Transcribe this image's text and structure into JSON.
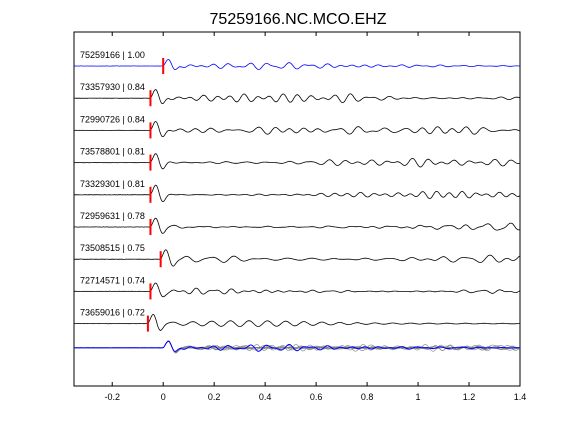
{
  "chart_data": {
    "type": "line",
    "title": "75259166.NC.MCO.EHZ",
    "xlabel": "",
    "ylabel": "",
    "xlim": [
      -0.35,
      1.4
    ],
    "xticks": [
      -0.2,
      0,
      0.2,
      0.4,
      0.6,
      0.8,
      1,
      1.2,
      1.4
    ],
    "xtick_labels": [
      "-0.2",
      "0",
      "0.2",
      "0.4",
      "0.6",
      "0.8",
      "1",
      "1.2",
      "1.4"
    ],
    "grid": false,
    "colors": {
      "master": "#0000ff",
      "trace": "#000000",
      "pick": "#ff0000",
      "stack": "#808080"
    },
    "series": [
      {
        "label": "75259166 | 1.00",
        "pick_time": 0.0,
        "amplitude": 0.55,
        "color": "master"
      },
      {
        "label": "73357930 | 0.84",
        "pick_time": -0.05,
        "amplitude": 0.7,
        "color": "trace"
      },
      {
        "label": "72990726 | 0.84",
        "pick_time": -0.05,
        "amplitude": 0.7,
        "color": "trace"
      },
      {
        "label": "73578801 | 0.81",
        "pick_time": -0.05,
        "amplitude": 0.7,
        "color": "trace"
      },
      {
        "label": "73329301 | 0.81",
        "pick_time": -0.05,
        "amplitude": 0.75,
        "color": "trace"
      },
      {
        "label": "72959631 | 0.78",
        "pick_time": -0.05,
        "amplitude": 0.7,
        "color": "trace"
      },
      {
        "label": "73508515 | 0.75",
        "pick_time": -0.01,
        "amplitude": 0.8,
        "color": "trace"
      },
      {
        "label": "72714571 | 0.74",
        "pick_time": -0.05,
        "amplitude": 0.7,
        "color": "trace"
      },
      {
        "label": "73659016 | 0.72",
        "pick_time": -0.06,
        "amplitude": 0.7,
        "color": "trace"
      }
    ],
    "stack_overlay": {
      "count": 8,
      "color": "stack",
      "master_color": "master"
    }
  }
}
